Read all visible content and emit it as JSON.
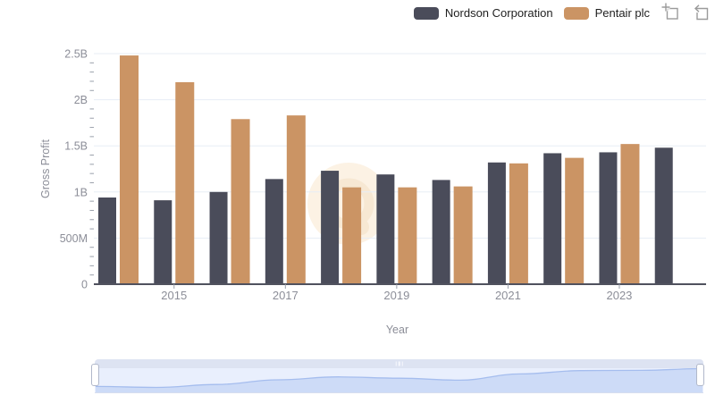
{
  "legend": {
    "icons": [
      {
        "name": "zoom-in"
      },
      {
        "name": "reset-zoom"
      }
    ]
  },
  "chart_data": {
    "type": "bar",
    "xlabel": "Year",
    "ylabel": "Gross Profit",
    "categories": [
      "2014",
      "2015",
      "2016",
      "2017",
      "2018",
      "2019",
      "2020",
      "2021",
      "2022",
      "2023",
      "2024"
    ],
    "series": [
      {
        "name": "Nordson Corporation",
        "color": "#4a4c5a",
        "values": [
          0.94,
          0.91,
          1.0,
          1.14,
          1.23,
          1.19,
          1.13,
          1.32,
          1.42,
          1.43,
          1.48
        ]
      },
      {
        "name": "Pentair plc",
        "color": "#cb9464",
        "values": [
          2.48,
          2.19,
          1.79,
          1.83,
          1.05,
          1.05,
          1.06,
          1.31,
          1.37,
          1.52,
          null
        ]
      }
    ],
    "unit": "billions",
    "ylim": [
      0,
      2.5
    ],
    "y_ticks": [
      {
        "value": 0,
        "label": "0"
      },
      {
        "value": 0.5,
        "label": "500M"
      },
      {
        "value": 1,
        "label": "1B"
      },
      {
        "value": 1.5,
        "label": "1.5B"
      },
      {
        "value": 2,
        "label": "2B"
      },
      {
        "value": 2.5,
        "label": "2.5B"
      }
    ],
    "x_ticks": [
      {
        "index": 1,
        "label": "2015"
      },
      {
        "index": 3,
        "label": "2017"
      },
      {
        "index": 5,
        "label": "2019"
      },
      {
        "index": 7,
        "label": "2021"
      },
      {
        "index": 9,
        "label": "2023"
      }
    ],
    "grid": true,
    "legend_position": "top-right"
  },
  "colors": {
    "grid": "#e7edf6",
    "axis_line": "#50525e",
    "tick": "#9aa0ab",
    "axis_label": "#8c8e98",
    "legend_text": "#1f1f1f",
    "icon": "#9b9b9b",
    "watermark_outer": "#fcf2e4",
    "watermark_inner": "#f7e8d3",
    "nav_bar": "#dde3f2",
    "nav_track": "#e9effd",
    "nav_area_fill": "#cddbf7",
    "nav_area_line": "#a5bdee",
    "nav_handle_border": "#b1b8ca"
  }
}
